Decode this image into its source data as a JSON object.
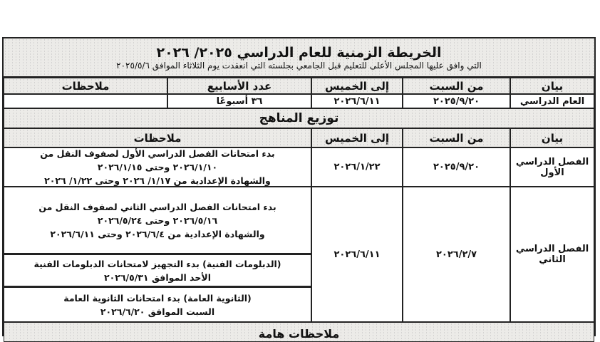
{
  "document": {
    "title": "الخريطة الزمنية للعام الدراسي ٢٠٢٥/ ٢٠٢٦",
    "subtitle": "التي وافق عليها المجلس الأعلى للتعليم قبل الجامعي بجلسته التي انعقدت يوم الثلاثاء الموافق ٢٠٢٥/٥/٦",
    "table1": {
      "headers": [
        "بيان",
        "من السبت",
        "إلى الخميس",
        "عدد الأسابيع",
        "ملاحظات"
      ],
      "row": {
        "label": "العام الدراسي",
        "from": "٢٠٢٥/٩/٢٠",
        "to": "٢٠٢٦/٦/١١",
        "weeks": "٣٦ أسبوعًا",
        "notes": ""
      }
    },
    "section2_title": "توزيع المناهج",
    "table2": {
      "headers": [
        "بيان",
        "من السبت",
        "إلى الخميس",
        "ملاحظات"
      ],
      "rows": [
        {
          "label": "الفصل الدراسي الأول",
          "from": "٢٠٢٥/٩/٢٠",
          "to": "٢٠٢٦/١/٢٢",
          "notes": [
            "بدء امتحانات الفصل الدراسي الأول لصفوف النقل من",
            "٢٠٢٦/١/١٠ وحتى ٢٠٢٦/١/١٥",
            "والشهادة الإعدادية من ١/١٧/ ٢٠٢٦ وحتى ١/٢٢/ ٢٠٢٦"
          ]
        },
        {
          "label": "الفصل الدراسي الثاني",
          "from": "٢٠٢٦/٢/٧",
          "to": "٢٠٢٦/٦/١١",
          "notes": [
            "بدء امتحانات الفصل الدراسي الثاني لصفوف النقل من",
            "٢٠٢٦/٥/١٦ وحتى ٢٠٢٦/٥/٢٤",
            "والشهادة الإعدادية من ٢٠٢٦/٦/٤ وحتى ٢٠٢٦/٦/١١"
          ],
          "notes2": [
            "(الدبلومات الفنية) بدء التجهيز لامتحانات الدبلومات الفنية",
            "الأحد الموافق ٢٠٢٦/٥/٣١"
          ],
          "notes3": [
            "(الثانوية العامة) بدء امتحانات الثانوية العامة",
            "السبت الموافق ٢٠٢٦/٦/٢٠"
          ]
        }
      ]
    },
    "section3_title": "ملاحظات هامة"
  }
}
